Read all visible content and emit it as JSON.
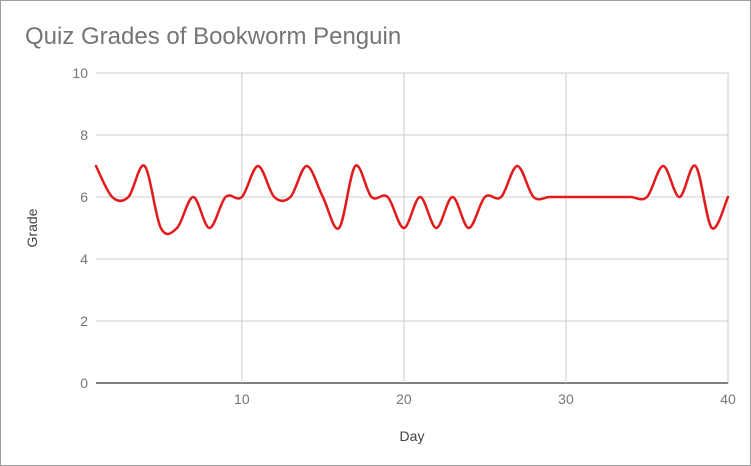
{
  "chart_data": {
    "type": "line",
    "title": "Quiz Grades of Bookworm Penguin",
    "xlabel": "Day",
    "ylabel": "Grade",
    "xlim": [
      1,
      40
    ],
    "ylim": [
      0,
      10
    ],
    "x_ticks": [
      10,
      20,
      30,
      40
    ],
    "y_ticks": [
      0,
      2,
      4,
      6,
      8,
      10
    ],
    "grid": true,
    "legend": "none",
    "series_color": "#e31a1c",
    "smooth": true,
    "x": [
      1,
      2,
      3,
      4,
      5,
      6,
      7,
      8,
      9,
      10,
      11,
      12,
      13,
      14,
      15,
      16,
      17,
      18,
      19,
      20,
      21,
      22,
      23,
      24,
      25,
      26,
      27,
      28,
      29,
      30,
      31,
      32,
      33,
      34,
      35,
      36,
      37,
      38,
      39,
      40
    ],
    "values": [
      7,
      6,
      6,
      7,
      5,
      5,
      6,
      5,
      6,
      6,
      7,
      6,
      6,
      7,
      6,
      5,
      7,
      6,
      6,
      5,
      6,
      5,
      6,
      5,
      6,
      6,
      7,
      6,
      6,
      6,
      6,
      6,
      6,
      6,
      6,
      7,
      6,
      7,
      5,
      6
    ]
  }
}
